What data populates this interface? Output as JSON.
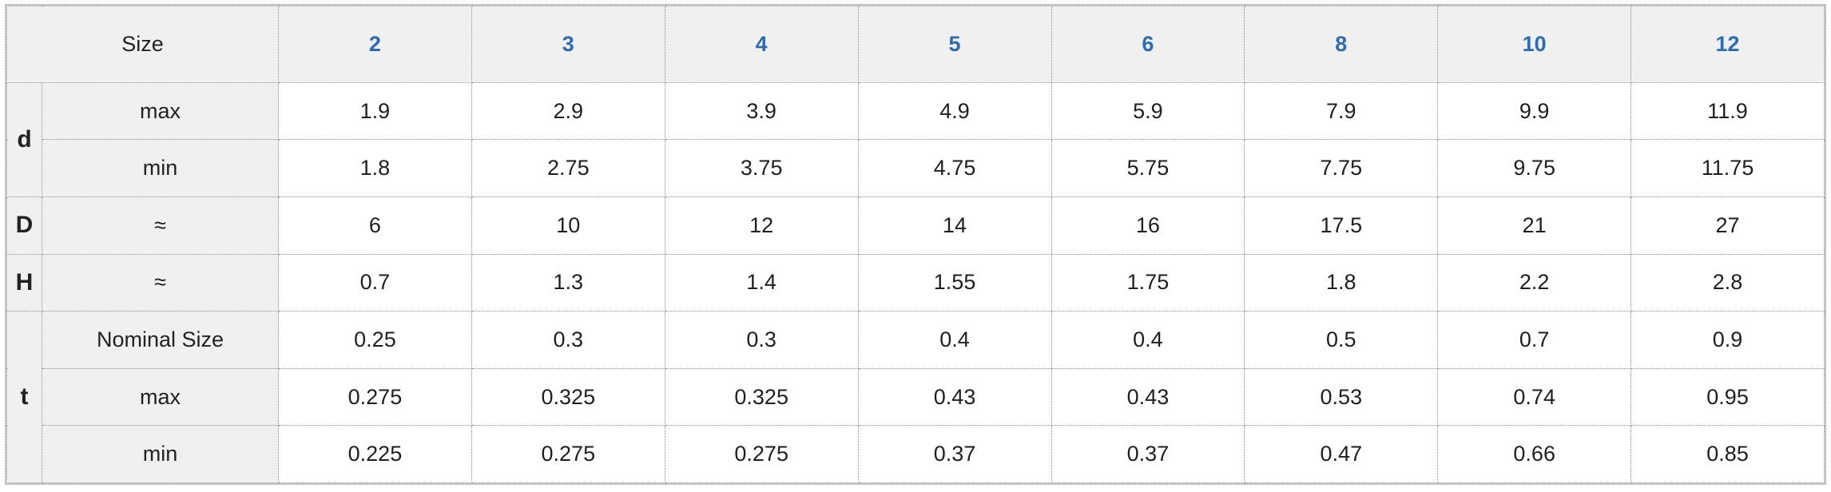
{
  "table": {
    "size_label": "Size",
    "sizes": [
      "2",
      "3",
      "4",
      "5",
      "6",
      "8",
      "10",
      "12"
    ],
    "groups": [
      {
        "symbol": "d",
        "rows": [
          {
            "label": "max",
            "values": [
              "1.9",
              "2.9",
              "3.9",
              "4.9",
              "5.9",
              "7.9",
              "9.9",
              "11.9"
            ]
          },
          {
            "label": "min",
            "values": [
              "1.8",
              "2.75",
              "3.75",
              "4.75",
              "5.75",
              "7.75",
              "9.75",
              "11.75"
            ]
          }
        ]
      },
      {
        "symbol": "D",
        "rows": [
          {
            "label": "≈",
            "values": [
              "6",
              "10",
              "12",
              "14",
              "16",
              "17.5",
              "21",
              "27"
            ]
          }
        ]
      },
      {
        "symbol": "H",
        "rows": [
          {
            "label": "≈",
            "values": [
              "0.7",
              "1.3",
              "1.4",
              "1.55",
              "1.75",
              "1.8",
              "2.2",
              "2.8"
            ]
          }
        ]
      },
      {
        "symbol": "t",
        "rows": [
          {
            "label": "Nominal Size",
            "values": [
              "0.25",
              "0.3",
              "0.3",
              "0.4",
              "0.4",
              "0.5",
              "0.7",
              "0.9"
            ]
          },
          {
            "label": "max",
            "values": [
              "0.275",
              "0.325",
              "0.325",
              "0.43",
              "0.43",
              "0.53",
              "0.74",
              "0.95"
            ]
          },
          {
            "label": "min",
            "values": [
              "0.225",
              "0.275",
              "0.275",
              "0.37",
              "0.37",
              "0.47",
              "0.66",
              "0.85"
            ]
          }
        ]
      }
    ]
  }
}
